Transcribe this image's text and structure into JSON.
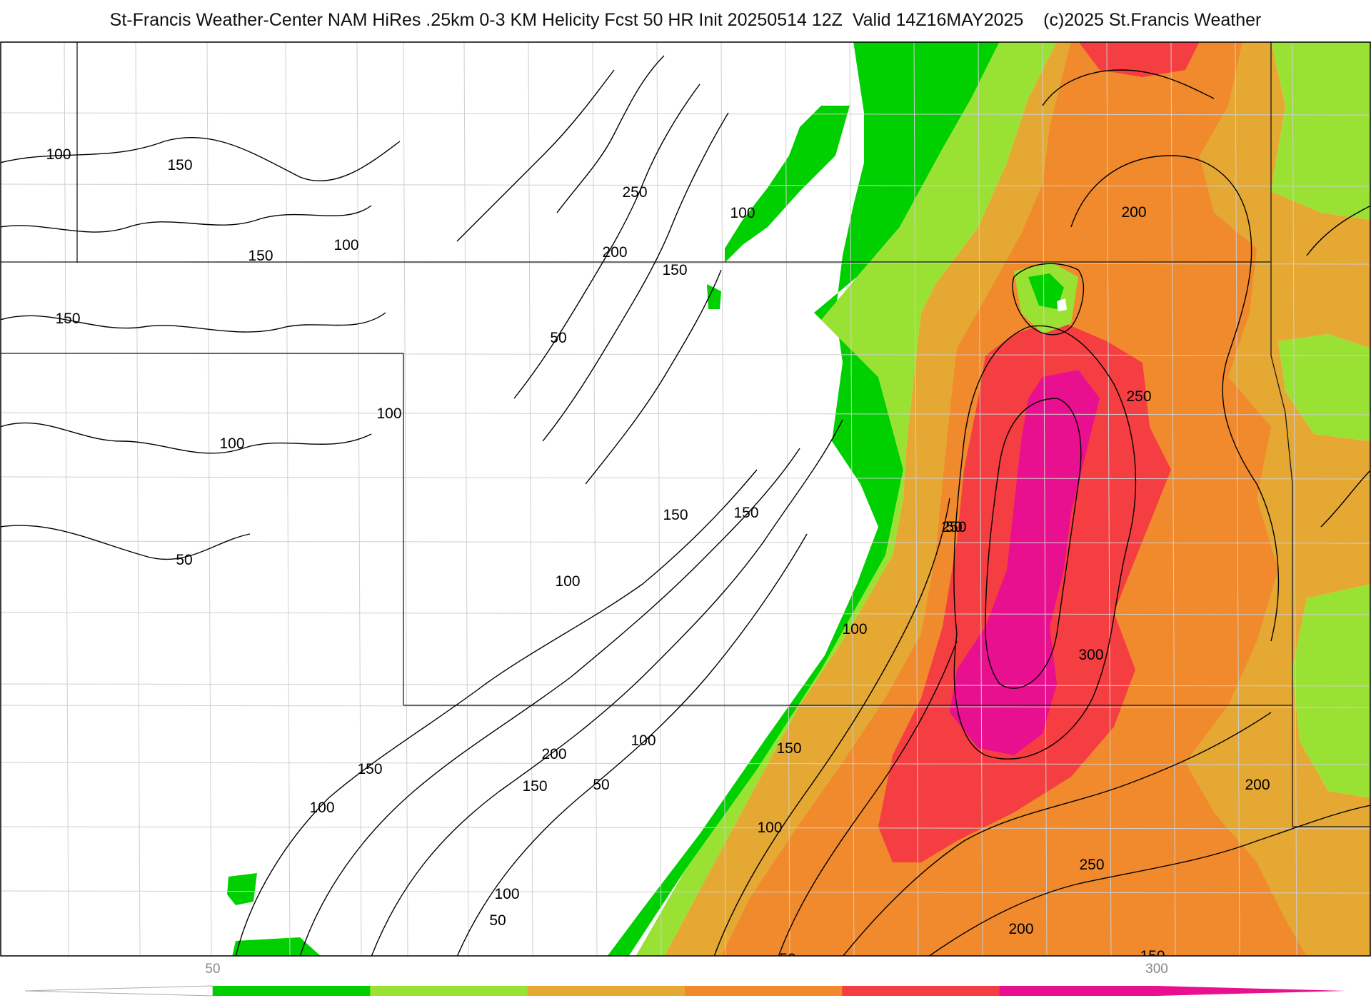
{
  "title": "St-Francis Weather-Center NAM HiRes .25km 0-3 KM Helicity Fcst 50 HR Init 20250514 12Z  Valid 14Z16MAY2025    (c)2025 St.Francis Weather",
  "map": {
    "field": "0-3 KM Helicity",
    "colors": {
      "band_50": "#00d000",
      "band_100": "#99e233",
      "band_150": "#e5a833",
      "band_200": "#f08a2c",
      "band_250": "#f53e41",
      "band_300": "#e8108f",
      "contour": "#000000",
      "boundary": "#222222",
      "county": "#c9c9c9"
    },
    "contour_labels": [
      {
        "text": "100"
      },
      {
        "text": "150"
      },
      {
        "text": "150"
      },
      {
        "text": "100"
      },
      {
        "text": "150"
      },
      {
        "text": "100"
      },
      {
        "text": "250"
      },
      {
        "text": "200"
      },
      {
        "text": "150"
      },
      {
        "text": "100"
      },
      {
        "text": "150"
      },
      {
        "text": "50"
      },
      {
        "text": "100"
      },
      {
        "text": "100"
      },
      {
        "text": "50"
      },
      {
        "text": "150"
      },
      {
        "text": "100"
      },
      {
        "text": "50"
      },
      {
        "text": "100"
      },
      {
        "text": "150"
      },
      {
        "text": "100"
      },
      {
        "text": "200"
      },
      {
        "text": "150"
      },
      {
        "text": "50"
      },
      {
        "text": "100"
      },
      {
        "text": "100"
      },
      {
        "text": "50"
      },
      {
        "text": "50"
      },
      {
        "text": "150"
      },
      {
        "text": "200"
      },
      {
        "text": "250"
      },
      {
        "text": "250"
      },
      {
        "text": "300"
      },
      {
        "text": "200"
      },
      {
        "text": "250"
      },
      {
        "text": "200"
      },
      {
        "text": "150"
      }
    ]
  },
  "colorbar": {
    "min_label": "50",
    "max_label": "300",
    "colors": [
      "#00d000",
      "#99e233",
      "#e5a833",
      "#f08a2c",
      "#f53e41",
      "#e8108f"
    ]
  }
}
